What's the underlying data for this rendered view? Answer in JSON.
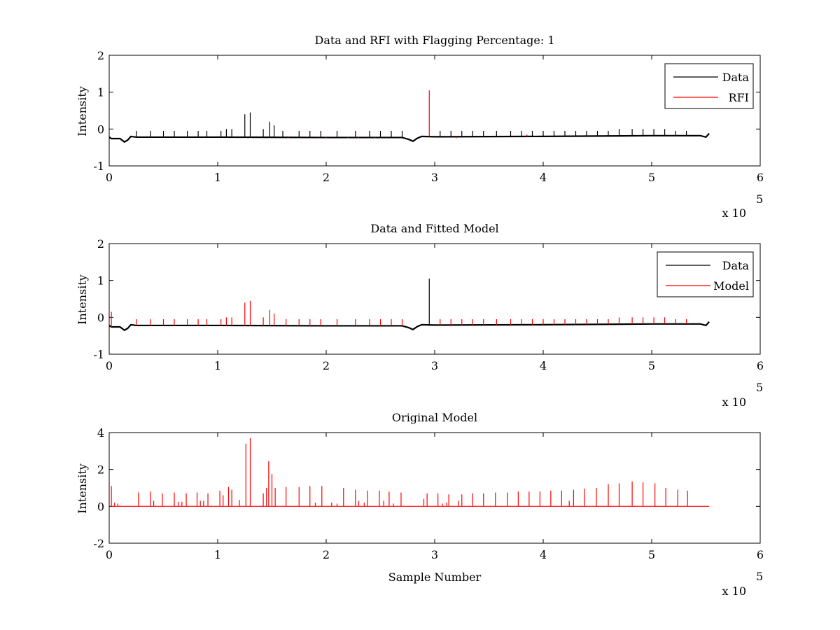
{
  "figure": {
    "background": "#ffffff",
    "multiplier_label": "x 10",
    "multiplier_exponent": "5"
  },
  "chart_data": [
    {
      "type": "line",
      "title": "Data and RFI with Flagging Percentage: 1",
      "xlabel": "",
      "ylabel": "Intensity",
      "xlim": [
        0,
        6
      ],
      "ylim": [
        -1,
        2
      ],
      "xticks": [
        "0",
        "1",
        "2",
        "3",
        "4",
        "5",
        "6"
      ],
      "yticks": [
        "-1",
        "0",
        "1",
        "2"
      ],
      "x_scale_exponent": 5,
      "legend_position": "top-right",
      "grid": false,
      "baseline_segments": [
        {
          "x": [
            0.0,
            0.02,
            0.07,
            0.1,
            0.14,
            0.17,
            0.2,
            0.25,
            1.0,
            2.0,
            2.7,
            2.76,
            2.8,
            2.84,
            2.88,
            3.0,
            4.0,
            5.0,
            5.45,
            5.5,
            5.53
          ],
          "y": [
            -0.22,
            -0.26,
            -0.26,
            -0.26,
            -0.35,
            -0.3,
            -0.2,
            -0.22,
            -0.22,
            -0.23,
            -0.23,
            -0.28,
            -0.33,
            -0.25,
            -0.2,
            -0.21,
            -0.2,
            -0.18,
            -0.18,
            -0.22,
            -0.12
          ]
        }
      ],
      "series": [
        {
          "name": "Data",
          "color": "#000000",
          "spikes": [
            {
              "x": 0.25,
              "y": -0.05
            },
            {
              "x": 0.38,
              "y": -0.05
            },
            {
              "x": 0.5,
              "y": -0.05
            },
            {
              "x": 0.6,
              "y": -0.05
            },
            {
              "x": 0.72,
              "y": -0.05
            },
            {
              "x": 0.82,
              "y": -0.05
            },
            {
              "x": 0.9,
              "y": -0.05
            },
            {
              "x": 1.03,
              "y": -0.05
            },
            {
              "x": 1.08,
              "y": 0.0
            },
            {
              "x": 1.13,
              "y": 0.0
            },
            {
              "x": 1.25,
              "y": 0.4
            },
            {
              "x": 1.3,
              "y": 0.45
            },
            {
              "x": 1.42,
              "y": 0.0
            },
            {
              "x": 1.48,
              "y": 0.2
            },
            {
              "x": 1.52,
              "y": 0.1
            },
            {
              "x": 1.6,
              "y": -0.05
            },
            {
              "x": 1.75,
              "y": -0.05
            },
            {
              "x": 1.85,
              "y": -0.05
            },
            {
              "x": 1.95,
              "y": -0.05
            },
            {
              "x": 2.1,
              "y": -0.05
            },
            {
              "x": 2.27,
              "y": -0.05
            },
            {
              "x": 2.4,
              "y": -0.05
            },
            {
              "x": 2.5,
              "y": -0.05
            },
            {
              "x": 2.6,
              "y": -0.05
            },
            {
              "x": 2.7,
              "y": -0.05
            },
            {
              "x": 3.05,
              "y": -0.05
            },
            {
              "x": 3.15,
              "y": -0.05
            },
            {
              "x": 3.25,
              "y": -0.05
            },
            {
              "x": 3.35,
              "y": -0.05
            },
            {
              "x": 3.45,
              "y": -0.05
            },
            {
              "x": 3.57,
              "y": -0.05
            },
            {
              "x": 3.7,
              "y": -0.05
            },
            {
              "x": 3.8,
              "y": -0.05
            },
            {
              "x": 3.9,
              "y": -0.05
            },
            {
              "x": 4.0,
              "y": -0.05
            },
            {
              "x": 4.1,
              "y": -0.05
            },
            {
              "x": 4.2,
              "y": -0.05
            },
            {
              "x": 4.3,
              "y": -0.05
            },
            {
              "x": 4.4,
              "y": -0.05
            },
            {
              "x": 4.5,
              "y": -0.05
            },
            {
              "x": 4.6,
              "y": -0.05
            },
            {
              "x": 4.7,
              "y": 0.0
            },
            {
              "x": 4.82,
              "y": 0.0
            },
            {
              "x": 4.92,
              "y": 0.0
            },
            {
              "x": 5.02,
              "y": 0.0
            },
            {
              "x": 5.12,
              "y": 0.0
            },
            {
              "x": 5.22,
              "y": -0.05
            },
            {
              "x": 5.32,
              "y": -0.05
            }
          ]
        },
        {
          "name": "RFI",
          "color": "#ff0000",
          "spikes": [
            {
              "x": 2.95,
              "y": 1.05
            },
            {
              "x": 1.65,
              "y": -0.25
            },
            {
              "x": 1.93,
              "y": -0.25
            },
            {
              "x": 2.0,
              "y": -0.25
            },
            {
              "x": 2.2,
              "y": -0.25
            },
            {
              "x": 2.3,
              "y": -0.25
            },
            {
              "x": 2.45,
              "y": -0.25
            },
            {
              "x": 3.2,
              "y": -0.25
            },
            {
              "x": 3.85,
              "y": -0.15
            }
          ]
        }
      ]
    },
    {
      "type": "line",
      "title": "Data and Fitted Model",
      "xlabel": "",
      "ylabel": "Intensity",
      "xlim": [
        0,
        6
      ],
      "ylim": [
        -1,
        2
      ],
      "xticks": [
        "0",
        "1",
        "2",
        "3",
        "4",
        "5",
        "6"
      ],
      "yticks": [
        "-1",
        "0",
        "1",
        "2"
      ],
      "x_scale_exponent": 5,
      "legend_position": "top-right",
      "grid": false,
      "baseline_segments": [
        {
          "x": [
            0.0,
            0.02,
            0.07,
            0.1,
            0.14,
            0.17,
            0.2,
            0.25,
            1.0,
            2.0,
            2.7,
            2.76,
            2.8,
            2.84,
            2.88,
            3.0,
            4.0,
            5.0,
            5.45,
            5.5,
            5.53
          ],
          "y": [
            -0.22,
            -0.26,
            -0.26,
            -0.26,
            -0.35,
            -0.3,
            -0.2,
            -0.22,
            -0.22,
            -0.23,
            -0.23,
            -0.28,
            -0.33,
            -0.25,
            -0.2,
            -0.21,
            -0.2,
            -0.18,
            -0.18,
            -0.22,
            -0.12
          ]
        }
      ],
      "series": [
        {
          "name": "Data",
          "color": "#000000",
          "spikes": [
            {
              "x": 2.95,
              "y": 1.05
            }
          ]
        },
        {
          "name": "Model",
          "color": "#ff0000",
          "spikes": [
            {
              "x": 0.02,
              "y": 0.15
            },
            {
              "x": 0.25,
              "y": -0.05
            },
            {
              "x": 0.38,
              "y": -0.05
            },
            {
              "x": 0.5,
              "y": -0.05
            },
            {
              "x": 0.6,
              "y": -0.05
            },
            {
              "x": 0.72,
              "y": -0.05
            },
            {
              "x": 0.82,
              "y": -0.05
            },
            {
              "x": 0.9,
              "y": -0.05
            },
            {
              "x": 1.03,
              "y": -0.05
            },
            {
              "x": 1.08,
              "y": 0.0
            },
            {
              "x": 1.13,
              "y": 0.0
            },
            {
              "x": 1.25,
              "y": 0.4
            },
            {
              "x": 1.3,
              "y": 0.45
            },
            {
              "x": 1.42,
              "y": 0.0
            },
            {
              "x": 1.48,
              "y": 0.2
            },
            {
              "x": 1.52,
              "y": 0.1
            },
            {
              "x": 1.63,
              "y": -0.05
            },
            {
              "x": 1.75,
              "y": -0.05
            },
            {
              "x": 1.85,
              "y": -0.05
            },
            {
              "x": 1.95,
              "y": -0.05
            },
            {
              "x": 2.1,
              "y": -0.05
            },
            {
              "x": 2.27,
              "y": -0.05
            },
            {
              "x": 2.4,
              "y": -0.05
            },
            {
              "x": 2.5,
              "y": -0.05
            },
            {
              "x": 2.6,
              "y": -0.05
            },
            {
              "x": 2.7,
              "y": -0.05
            },
            {
              "x": 3.05,
              "y": -0.05
            },
            {
              "x": 3.15,
              "y": -0.05
            },
            {
              "x": 3.25,
              "y": -0.05
            },
            {
              "x": 3.35,
              "y": -0.05
            },
            {
              "x": 3.45,
              "y": -0.05
            },
            {
              "x": 3.57,
              "y": -0.05
            },
            {
              "x": 3.7,
              "y": -0.05
            },
            {
              "x": 3.8,
              "y": -0.05
            },
            {
              "x": 3.9,
              "y": -0.05
            },
            {
              "x": 4.0,
              "y": -0.05
            },
            {
              "x": 4.1,
              "y": -0.05
            },
            {
              "x": 4.2,
              "y": -0.05
            },
            {
              "x": 4.3,
              "y": -0.05
            },
            {
              "x": 4.4,
              "y": -0.05
            },
            {
              "x": 4.5,
              "y": -0.05
            },
            {
              "x": 4.6,
              "y": -0.05
            },
            {
              "x": 4.7,
              "y": 0.0
            },
            {
              "x": 4.82,
              "y": 0.0
            },
            {
              "x": 4.92,
              "y": 0.0
            },
            {
              "x": 5.02,
              "y": 0.0
            },
            {
              "x": 5.12,
              "y": 0.0
            },
            {
              "x": 5.22,
              "y": -0.05
            },
            {
              "x": 5.32,
              "y": -0.05
            }
          ]
        }
      ]
    },
    {
      "type": "line",
      "title": "Original Model",
      "xlabel": "Sample Number",
      "ylabel": "Intensity",
      "xlim": [
        0,
        6
      ],
      "ylim": [
        -2,
        4
      ],
      "xticks": [
        "0",
        "1",
        "2",
        "3",
        "4",
        "5",
        "6"
      ],
      "yticks": [
        "-2",
        "0",
        "2",
        "4"
      ],
      "x_scale_exponent": 5,
      "grid": false,
      "series": [
        {
          "name": "",
          "color": "#ff0000",
          "baseline": {
            "x": [
              0.02,
              5.53
            ],
            "y": [
              0.0,
              0.0
            ]
          },
          "spikes": [
            {
              "x": 0.02,
              "y": 1.1
            },
            {
              "x": 0.05,
              "y": 0.2
            },
            {
              "x": 0.08,
              "y": 0.15
            },
            {
              "x": 0.27,
              "y": 0.75
            },
            {
              "x": 0.38,
              "y": 0.8
            },
            {
              "x": 0.41,
              "y": 0.3
            },
            {
              "x": 0.49,
              "y": 0.7
            },
            {
              "x": 0.6,
              "y": 0.75
            },
            {
              "x": 0.64,
              "y": 0.25
            },
            {
              "x": 0.67,
              "y": 0.25
            },
            {
              "x": 0.71,
              "y": 0.7
            },
            {
              "x": 0.81,
              "y": 0.75
            },
            {
              "x": 0.84,
              "y": 0.3
            },
            {
              "x": 0.87,
              "y": 0.3
            },
            {
              "x": 0.91,
              "y": 0.7
            },
            {
              "x": 1.02,
              "y": 0.85
            },
            {
              "x": 1.05,
              "y": 0.6
            },
            {
              "x": 1.1,
              "y": 1.05
            },
            {
              "x": 1.13,
              "y": 0.9
            },
            {
              "x": 1.2,
              "y": 0.35
            },
            {
              "x": 1.26,
              "y": 3.4
            },
            {
              "x": 1.3,
              "y": 3.7
            },
            {
              "x": 1.42,
              "y": 0.7
            },
            {
              "x": 1.45,
              "y": 1.0
            },
            {
              "x": 1.47,
              "y": 2.45
            },
            {
              "x": 1.5,
              "y": 1.75
            },
            {
              "x": 1.53,
              "y": 1.0
            },
            {
              "x": 1.63,
              "y": 1.05
            },
            {
              "x": 1.75,
              "y": 1.05
            },
            {
              "x": 1.85,
              "y": 1.1
            },
            {
              "x": 1.9,
              "y": 0.2
            },
            {
              "x": 1.96,
              "y": 1.1
            },
            {
              "x": 2.05,
              "y": 0.2
            },
            {
              "x": 2.1,
              "y": 0.15
            },
            {
              "x": 2.16,
              "y": 1.0
            },
            {
              "x": 2.27,
              "y": 0.9
            },
            {
              "x": 2.3,
              "y": 0.3
            },
            {
              "x": 2.35,
              "y": 0.2
            },
            {
              "x": 2.38,
              "y": 0.85
            },
            {
              "x": 2.49,
              "y": 0.85
            },
            {
              "x": 2.53,
              "y": 0.3
            },
            {
              "x": 2.58,
              "y": 0.8
            },
            {
              "x": 2.62,
              "y": 0.15
            },
            {
              "x": 2.69,
              "y": 0.75
            },
            {
              "x": 2.9,
              "y": 0.4
            },
            {
              "x": 2.93,
              "y": 0.7
            },
            {
              "x": 3.03,
              "y": 0.7
            },
            {
              "x": 3.07,
              "y": 0.15
            },
            {
              "x": 3.11,
              "y": 0.2
            },
            {
              "x": 3.13,
              "y": 0.65
            },
            {
              "x": 3.22,
              "y": 0.3
            },
            {
              "x": 3.25,
              "y": 0.65
            },
            {
              "x": 3.35,
              "y": 0.7
            },
            {
              "x": 3.45,
              "y": 0.7
            },
            {
              "x": 3.56,
              "y": 0.75
            },
            {
              "x": 3.67,
              "y": 0.75
            },
            {
              "x": 3.77,
              "y": 0.8
            },
            {
              "x": 3.87,
              "y": 0.8
            },
            {
              "x": 3.97,
              "y": 0.8
            },
            {
              "x": 4.07,
              "y": 0.85
            },
            {
              "x": 4.17,
              "y": 0.85
            },
            {
              "x": 4.24,
              "y": 0.3
            },
            {
              "x": 4.28,
              "y": 0.9
            },
            {
              "x": 4.38,
              "y": 0.95
            },
            {
              "x": 4.49,
              "y": 1.0
            },
            {
              "x": 4.6,
              "y": 1.2
            },
            {
              "x": 4.7,
              "y": 1.25
            },
            {
              "x": 4.82,
              "y": 1.35
            },
            {
              "x": 4.92,
              "y": 1.3
            },
            {
              "x": 5.03,
              "y": 1.25
            },
            {
              "x": 5.13,
              "y": 1.0
            },
            {
              "x": 5.24,
              "y": 0.9
            },
            {
              "x": 5.33,
              "y": 0.85
            }
          ]
        }
      ]
    }
  ]
}
